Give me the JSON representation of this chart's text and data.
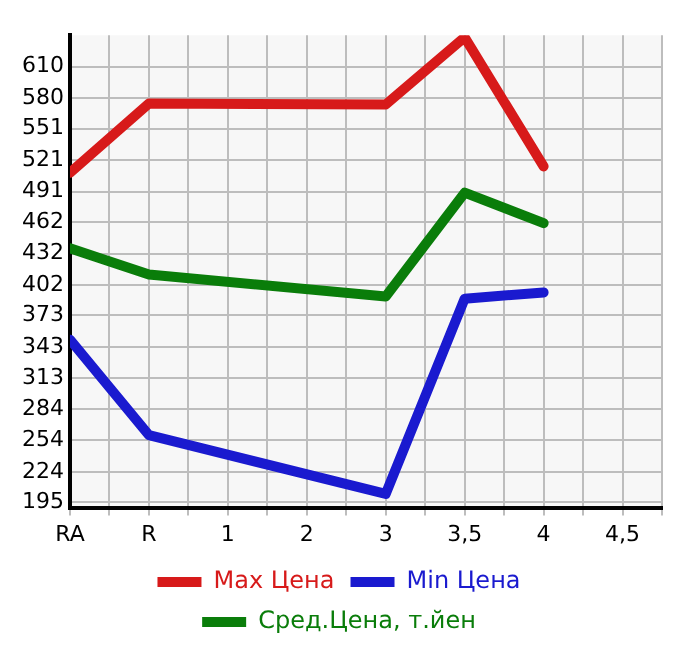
{
  "chart_data": {
    "type": "line",
    "categories": [
      "RA",
      "R",
      "1",
      "2",
      "3",
      "3,5",
      "4",
      "4,5"
    ],
    "series": [
      {
        "name": "Max Цена",
        "color": "#d71a1a",
        "values": [
          509,
          575,
          null,
          null,
          574,
          638,
          515,
          null
        ]
      },
      {
        "name": "Min Цена",
        "color": "#1a1acf",
        "values": [
          350,
          259,
          null,
          null,
          203,
          389,
          395,
          null
        ]
      },
      {
        "name": "Сред.Цена, т.йен",
        "color": "#0a7d0a",
        "values": [
          437,
          412,
          null,
          null,
          391,
          490,
          461,
          null
        ]
      }
    ],
    "ylim": [
      190,
      640
    ],
    "yticks": [
      195,
      224,
      254,
      284,
      313,
      343,
      373,
      402,
      432,
      462,
      491,
      521,
      551,
      580,
      610
    ],
    "grid": true,
    "legend": "bottom",
    "marker": "none",
    "line_style": "solid"
  }
}
